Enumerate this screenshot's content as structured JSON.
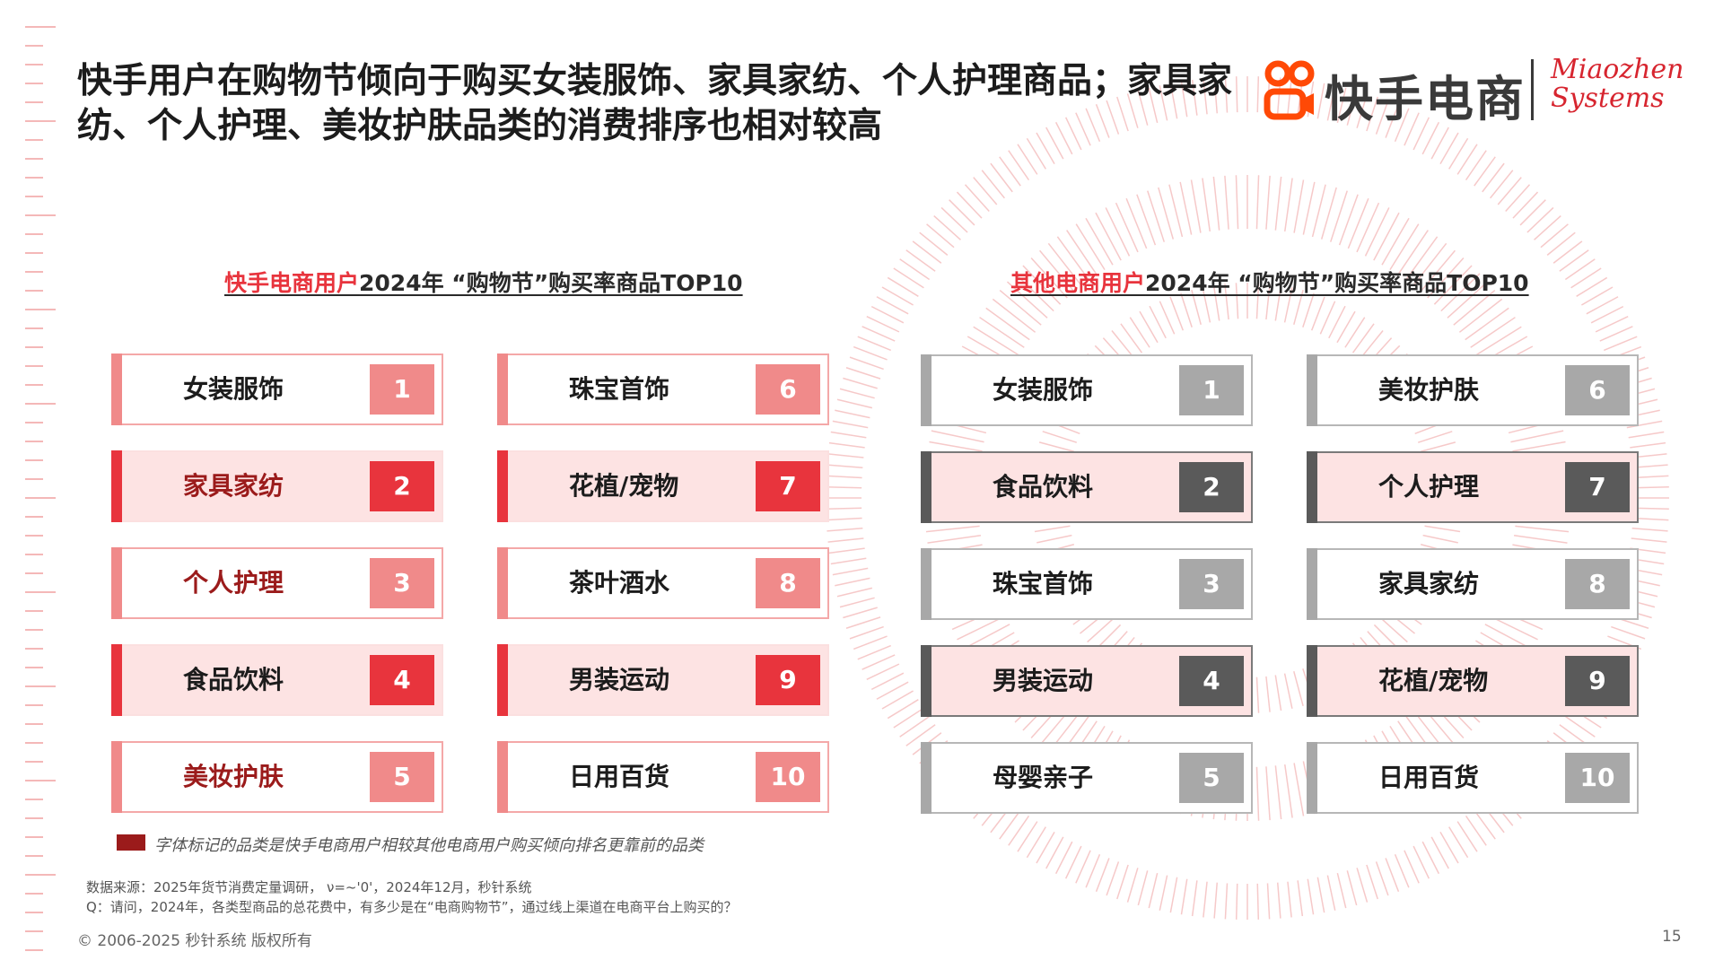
{
  "title": "快手用户在购物节倾向于购买女装服饰、家具家纺、个人护理商品；家具家纺、个人护理、美妆护肤品类的消费排序也相对较高",
  "logo": {
    "kuaishou_text": "快手电商",
    "miaozhen_line1": "Miaozhen",
    "miaozhen_line2": "Systems",
    "icon": "kuaishou-logo-icon"
  },
  "left_section": {
    "highlight": "快手电商用户",
    "rest": "2024年 “购物节”购买率商品TOP10",
    "items": [
      {
        "rank": "1",
        "name": "女装服饰"
      },
      {
        "rank": "2",
        "name": "家具家纺"
      },
      {
        "rank": "3",
        "name": "个人护理"
      },
      {
        "rank": "4",
        "name": "食品饮料"
      },
      {
        "rank": "5",
        "name": "美妆护肤"
      },
      {
        "rank": "6",
        "name": "珠宝首饰"
      },
      {
        "rank": "7",
        "name": "花植/宠物"
      },
      {
        "rank": "8",
        "name": "茶叶酒水"
      },
      {
        "rank": "9",
        "name": "男装运动"
      },
      {
        "rank": "10",
        "name": "日用百货"
      }
    ]
  },
  "right_section": {
    "highlight": "其他电商用户",
    "rest": "2024年 “购物节”购买率商品TOP10",
    "items": [
      {
        "rank": "1",
        "name": "女装服饰"
      },
      {
        "rank": "2",
        "name": "食品饮料"
      },
      {
        "rank": "3",
        "name": "珠宝首饰"
      },
      {
        "rank": "4",
        "name": "男装运动"
      },
      {
        "rank": "5",
        "name": "母婴亲子"
      },
      {
        "rank": "6",
        "name": "美妆护肤"
      },
      {
        "rank": "7",
        "name": "个人护理"
      },
      {
        "rank": "8",
        "name": "家具家纺"
      },
      {
        "rank": "9",
        "name": "花植/宠物"
      },
      {
        "rank": "10",
        "name": "日用百货"
      }
    ]
  },
  "legend": {
    "text": "字体标记的品类是快手电商用户相较其他电商用户购买倾向排名更靠前的品类",
    "color": "#9b1b1b"
  },
  "source": {
    "line1": "数据来源：2025年货节消费定量调研， ν=~'0'，2024年12月，秒针系统",
    "line2": "Q：请问，2024年，各类型商品的总花费中，有多少是在“电商购物节”，通过线上渠道在电商平台上购买的？"
  },
  "footer": "© 2006-2025 秒针系统 版权所有",
  "page_number": "15",
  "colors": {
    "accent_red": "#e8343d",
    "light_red": "#f08a8a",
    "dark_gray": "#5a5a5a",
    "light_gray": "#a8a8a8",
    "highlight_bg": "#fde3e3"
  }
}
